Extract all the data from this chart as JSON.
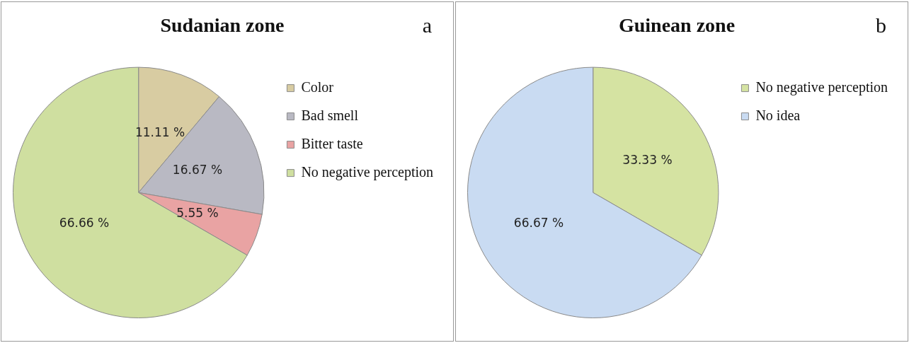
{
  "chart_data": [
    {
      "type": "pie",
      "title": "Sudanian zone",
      "annotations": [
        "a"
      ],
      "categories": [
        "Color",
        "Bad smell",
        "Bitter taste",
        "No negative perception"
      ],
      "values": [
        11.11,
        16.67,
        5.55,
        66.66
      ],
      "colors": [
        "#d8cca2",
        "#b9b9c3",
        "#e9a3a3",
        "#cfdfa0"
      ],
      "value_labels": [
        "11.11 %",
        "16.67 %",
        "5.55 %",
        "66.66 %"
      ],
      "legend": "right"
    },
    {
      "type": "pie",
      "title": "Guinean zone",
      "annotations": [
        "b"
      ],
      "categories": [
        "No negative perception",
        "No idea"
      ],
      "values": [
        33.33,
        66.67
      ],
      "colors": [
        "#d5e3a2",
        "#c9dbf2"
      ],
      "value_labels": [
        "33.33 %",
        "66.67 %"
      ],
      "legend": "right"
    }
  ]
}
